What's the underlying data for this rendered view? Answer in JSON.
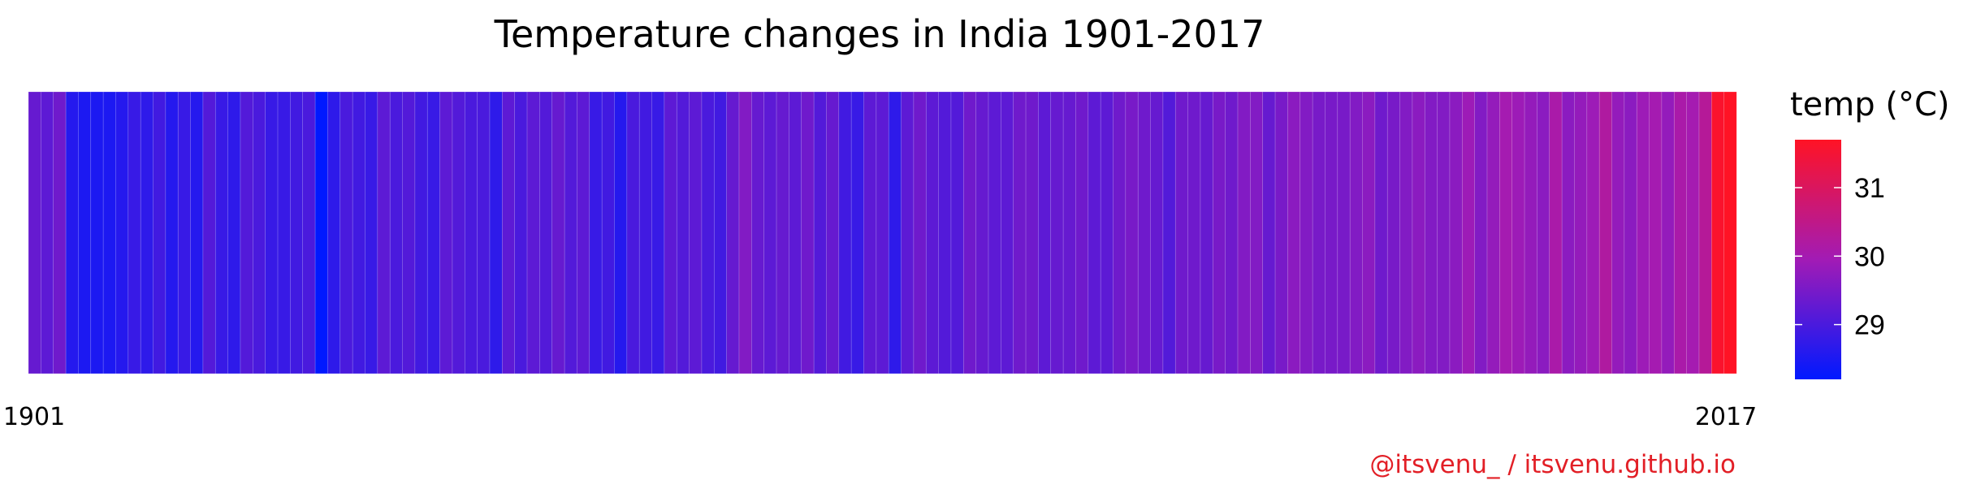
{
  "chart_data": {
    "type": "heatmap",
    "title": "Temperature changes in India 1901-2017",
    "xlabel": "",
    "ylabel": "",
    "x_tick_labels": [
      "1901",
      "2017"
    ],
    "years": [
      1901,
      2017
    ],
    "values": [
      29.3,
      29.2,
      29.4,
      28.6,
      28.5,
      28.5,
      28.5,
      28.6,
      28.8,
      28.7,
      28.9,
      28.6,
      28.8,
      28.6,
      29.1,
      28.8,
      28.7,
      29.1,
      29.0,
      28.8,
      28.8,
      28.9,
      29.0,
      28.2,
      28.7,
      29.0,
      28.9,
      28.8,
      29.2,
      29.0,
      29.1,
      28.9,
      28.8,
      29.2,
      29.1,
      29.0,
      29.0,
      28.7,
      29.2,
      29.0,
      29.2,
      29.1,
      29.3,
      29.1,
      29.2,
      28.8,
      28.9,
      28.6,
      29.0,
      28.9,
      28.8,
      29.2,
      29.1,
      29.2,
      29.0,
      28.9,
      29.3,
      29.6,
      29.3,
      29.2,
      29.3,
      29.2,
      29.4,
      29.1,
      29.3,
      28.9,
      28.8,
      29.2,
      29.2,
      28.7,
      29.2,
      29.4,
      29.2,
      29.1,
      29.1,
      29.4,
      29.3,
      29.2,
      29.2,
      29.4,
      29.4,
      29.2,
      29.3,
      29.3,
      29.4,
      29.2,
      29.2,
      29.4,
      29.5,
      29.4,
      29.3,
      29.1,
      29.4,
      29.4,
      29.3,
      29.5,
      29.4,
      29.6,
      29.6,
      29.3,
      29.5,
      29.7,
      29.6,
      29.5,
      29.5,
      29.5,
      29.6,
      29.7,
      29.4,
      29.5,
      29.6,
      29.7,
      29.6,
      29.6,
      29.7,
      29.9,
      29.6,
      29.8,
      30.0,
      29.9,
      29.8,
      29.7,
      30.1,
      29.7,
      29.8,
      29.9,
      30.2,
      29.8,
      29.7,
      29.9,
      30.0,
      29.8,
      30.1,
      30.0,
      30.3,
      31.6,
      31.7
    ],
    "legend": {
      "title": "temp (°C)",
      "ticks": [
        29,
        30,
        31
      ],
      "range": [
        28.2,
        31.7
      ],
      "low_color": "#0019ff",
      "mid_color": "#a21bb5",
      "high_color": "#ff1325",
      "position": "right"
    },
    "grid": false
  },
  "caption": {
    "text": "@itsvenu_ / itsvenu.github.io",
    "color": "#e21f26"
  }
}
